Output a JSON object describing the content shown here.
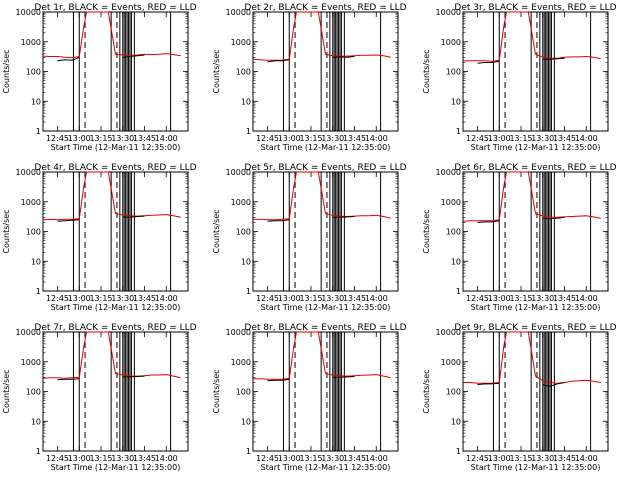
{
  "colors": {
    "events": "#000000",
    "lld": "#e00000",
    "background": "#ffffff"
  },
  "chart_data": {
    "type": "line",
    "grid": "3x3",
    "shared": {
      "xlabel": "Start Time (12-Mar-11 12:35:00)",
      "ylabel": "Counts/sec",
      "y_scale": "log",
      "ylim": [
        1,
        10000
      ],
      "y_ticks": [
        1,
        10,
        100,
        1000,
        10000
      ],
      "y_tick_labels": [
        "1",
        "10",
        "100",
        "1000",
        "10000"
      ],
      "xlim": [
        "12:35",
        "14:15"
      ],
      "x_ticks": [
        "12:45",
        "13:00",
        "13:15",
        "13:30",
        "13:45",
        "14:00"
      ],
      "x_tick_labels": [
        "12:45",
        "13:00",
        "13:15",
        "13:30",
        "13:45",
        "14:00"
      ],
      "series_names": [
        "BLACK = Events",
        "RED = LLD"
      ],
      "x": [
        "12:35",
        "12:40",
        "12:45",
        "12:50",
        "12:55",
        "13:00",
        "13:03",
        "13:05",
        "13:10",
        "13:15",
        "13:20",
        "13:25",
        "13:30",
        "13:35",
        "13:40",
        "13:45",
        "13:50",
        "13:55",
        "14:00",
        "14:05",
        "14:10"
      ],
      "transition_markers": [
        "13:04",
        "13:26"
      ],
      "gap_markers": [
        "12:56",
        "13:00",
        "13:22",
        "13:28",
        "13:30",
        "13:31",
        "13:32",
        "13:33",
        "13:34",
        "13:35",
        "13:36",
        "13:38",
        "14:03"
      ]
    },
    "panels": [
      {
        "title": "Det 1r, BLACK = Events, RED = LLD",
        "series": [
          {
            "name": "RED = LLD",
            "color": "#e00000",
            "values": [
              330,
              320,
              320,
              300,
              290,
              320,
              3000,
              10000,
              10000,
              10000,
              10000,
              380,
              360,
              350,
              360,
              380,
              370,
              380,
              400,
              370,
              340
            ]
          },
          {
            "name": "BLACK = Events",
            "color": "#000000",
            "values": [
              null,
              null,
              230,
              250,
              240,
              300,
              null,
              null,
              null,
              null,
              null,
              null,
              300,
              320,
              340,
              360,
              null,
              null,
              null,
              null,
              null
            ]
          }
        ]
      },
      {
        "title": "Det 2r, BLACK = Events, RED = LLD",
        "series": [
          {
            "name": "RED = LLD",
            "color": "#e00000",
            "values": [
              260,
              250,
              240,
              240,
              240,
              260,
              3000,
              10000,
              10000,
              10000,
              10000,
              380,
              340,
              330,
              330,
              340,
              350,
              350,
              360,
              340,
              300
            ]
          },
          {
            "name": "BLACK = Events",
            "color": "#000000",
            "values": [
              null,
              null,
              210,
              230,
              230,
              250,
              null,
              null,
              null,
              null,
              null,
              null,
              300,
              310,
              300,
              320,
              null,
              null,
              null,
              null,
              null
            ]
          }
        ]
      },
      {
        "title": "Det 3r, BLACK = Events, RED = LLD",
        "series": [
          {
            "name": "RED = LLD",
            "color": "#e00000",
            "values": [
              230,
              230,
              230,
              230,
              220,
              240,
              3000,
              10000,
              10000,
              10000,
              10000,
              380,
              300,
              280,
              280,
              300,
              310,
              310,
              320,
              300,
              270
            ]
          },
          {
            "name": "BLACK = Events",
            "color": "#000000",
            "values": [
              null,
              null,
              190,
              200,
              200,
              220,
              null,
              null,
              null,
              null,
              null,
              null,
              260,
              260,
              270,
              280,
              null,
              null,
              null,
              null,
              null
            ]
          }
        ]
      },
      {
        "title": "Det 4r, BLACK = Events, RED = LLD",
        "series": [
          {
            "name": "RED = LLD",
            "color": "#e00000",
            "values": [
              250,
              260,
              250,
              260,
              260,
              270,
              3000,
              10000,
              10000,
              10000,
              10000,
              400,
              360,
              340,
              330,
              340,
              350,
              360,
              370,
              340,
              300
            ]
          },
          {
            "name": "BLACK = Events",
            "color": "#000000",
            "values": [
              null,
              null,
              220,
              230,
              240,
              250,
              null,
              null,
              null,
              null,
              null,
              null,
              310,
              300,
              320,
              330,
              null,
              null,
              null,
              null,
              null
            ]
          }
        ]
      },
      {
        "title": "Det 5r, BLACK = Events, RED = LLD",
        "series": [
          {
            "name": "RED = LLD",
            "color": "#e00000",
            "values": [
              260,
              260,
              250,
              250,
              260,
              270,
              3000,
              10000,
              10000,
              10000,
              10000,
              400,
              350,
              330,
              320,
              330,
              340,
              340,
              350,
              320,
              280
            ]
          },
          {
            "name": "BLACK = Events",
            "color": "#000000",
            "values": [
              null,
              null,
              220,
              230,
              230,
              250,
              null,
              null,
              null,
              null,
              null,
              null,
              300,
              300,
              310,
              320,
              null,
              null,
              null,
              null,
              null
            ]
          }
        ]
      },
      {
        "title": "Det 6r, BLACK = Events, RED = LLD",
        "series": [
          {
            "name": "RED = LLD",
            "color": "#e00000",
            "values": [
              220,
              230,
              230,
              230,
              230,
              250,
              3000,
              10000,
              10000,
              10000,
              10000,
              400,
              330,
              300,
              300,
              310,
              320,
              330,
              340,
              310,
              280
            ]
          },
          {
            "name": "BLACK = Events",
            "color": "#000000",
            "values": [
              null,
              null,
              200,
              210,
              210,
              230,
              null,
              null,
              null,
              null,
              null,
              null,
              280,
              270,
              280,
              300,
              null,
              null,
              null,
              null,
              null
            ]
          }
        ]
      },
      {
        "title": "Det 7r, BLACK = Events, RED = LLD",
        "series": [
          {
            "name": "RED = LLD",
            "color": "#e00000",
            "values": [
              280,
              290,
              290,
              280,
              290,
              300,
              3000,
              10000,
              10000,
              10000,
              10000,
              400,
              360,
              330,
              330,
              340,
              360,
              360,
              370,
              330,
              290
            ]
          },
          {
            "name": "BLACK = Events",
            "color": "#000000",
            "values": [
              null,
              null,
              250,
              260,
              260,
              270,
              null,
              null,
              null,
              null,
              null,
              null,
              310,
              310,
              320,
              330,
              null,
              null,
              null,
              null,
              null
            ]
          }
        ]
      },
      {
        "title": "Det 8r, BLACK = Events, RED = LLD",
        "series": [
          {
            "name": "RED = LLD",
            "color": "#e00000",
            "values": [
              270,
              270,
              260,
              260,
              260,
              280,
              3000,
              10000,
              10000,
              10000,
              10000,
              400,
              360,
              340,
              330,
              340,
              350,
              360,
              370,
              330,
              290
            ]
          },
          {
            "name": "BLACK = Events",
            "color": "#000000",
            "values": [
              null,
              null,
              230,
              240,
              240,
              260,
              null,
              null,
              null,
              null,
              null,
              null,
              300,
              300,
              310,
              320,
              null,
              null,
              null,
              null,
              null
            ]
          }
        ]
      },
      {
        "title": "Det 9r, BLACK = Events, RED = LLD",
        "series": [
          {
            "name": "RED = LLD",
            "color": "#e00000",
            "values": [
              200,
              200,
              190,
              190,
              190,
              200,
              3000,
              10000,
              10000,
              10000,
              10000,
              330,
              230,
              200,
              190,
              200,
              220,
              230,
              240,
              220,
              200
            ]
          },
          {
            "name": "BLACK = Events",
            "color": "#000000",
            "values": [
              null,
              null,
              170,
              180,
              180,
              190,
              null,
              null,
              null,
              null,
              null,
              null,
              170,
              150,
              180,
              200,
              null,
              null,
              null,
              null,
              null
            ]
          }
        ]
      }
    ]
  }
}
